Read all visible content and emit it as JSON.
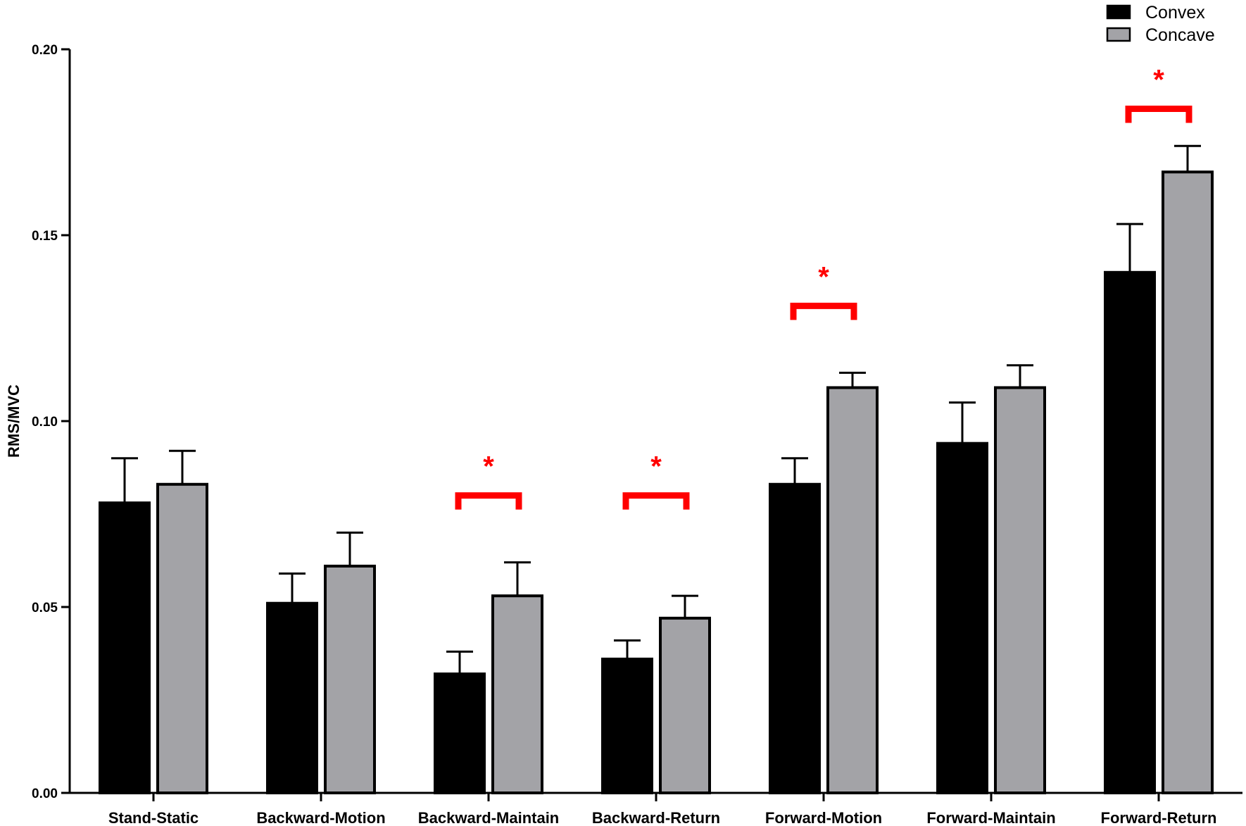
{
  "chart_data": {
    "type": "bar",
    "title": "",
    "xlabel": "",
    "ylabel": "RMS/MVC",
    "ylim": [
      0,
      0.2
    ],
    "yticks": [
      "0.00",
      "0.05",
      "0.10",
      "0.15",
      "0.20"
    ],
    "ytick_values": [
      0,
      0.05,
      0.1,
      0.15,
      0.2
    ],
    "categories": [
      "Stand-Static",
      "Backward-Motion",
      "Backward-Maintain",
      "Backward-Return",
      "Forward-Motion",
      "Forward-Maintain",
      "Forward-Return"
    ],
    "series": [
      {
        "name": "Convex",
        "color": "#000000",
        "values": [
          0.078,
          0.051,
          0.032,
          0.036,
          0.083,
          0.094,
          0.14
        ],
        "error_upper": [
          0.09,
          0.059,
          0.038,
          0.041,
          0.09,
          0.105,
          0.153
        ]
      },
      {
        "name": "Concave",
        "color": "#a3a3a7",
        "values": [
          0.083,
          0.061,
          0.053,
          0.047,
          0.109,
          0.109,
          0.167
        ],
        "error_upper": [
          0.092,
          0.07,
          0.062,
          0.053,
          0.113,
          0.115,
          0.174
        ]
      }
    ],
    "significance": [
      {
        "category_index": 2,
        "label": "*",
        "bracket_level": 0.08
      },
      {
        "category_index": 3,
        "label": "*",
        "bracket_level": 0.08
      },
      {
        "category_index": 4,
        "label": "*",
        "bracket_level": 0.131
      },
      {
        "category_index": 6,
        "label": "*",
        "bracket_level": 0.184
      }
    ],
    "significance_color": "#ff0000",
    "legend_position": "top-right",
    "grid": false
  }
}
